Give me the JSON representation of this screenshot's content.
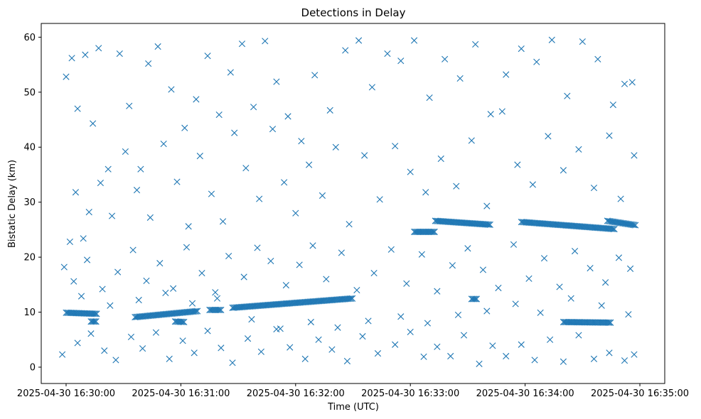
{
  "chart_data": {
    "type": "scatter",
    "title": "Detections in Delay",
    "xlabel": "Time (UTC)",
    "ylabel": "Bistatic Delay (km)",
    "marker": "x",
    "color": "#1f77b4",
    "grid": false,
    "legend": "none",
    "x_start": "2025-04-30 16:29:47",
    "x_end": "2025-04-30 16:35:13",
    "ylim": [
      -2.97,
      62.5
    ],
    "x_ticks": [
      "2025-04-30 16:30:00",
      "2025-04-30 16:31:00",
      "2025-04-30 16:32:00",
      "2025-04-30 16:33:00",
      "2025-04-30 16:34:00",
      "2025-04-30 16:35:00"
    ],
    "y_ticks": [
      0,
      10,
      20,
      30,
      40,
      50,
      60
    ],
    "tracks": [
      {
        "from": "2025-04-30 16:30:00",
        "to": "2025-04-30 16:30:16",
        "delay_from": 9.9,
        "delay_to": 9.7
      },
      {
        "from": "2025-04-30 16:30:13",
        "to": "2025-04-30 16:30:16",
        "delay_from": 8.3,
        "delay_to": 8.3
      },
      {
        "from": "2025-04-30 16:30:36",
        "to": "2025-04-30 16:31:09",
        "delay_from": 9.1,
        "delay_to": 10.2
      },
      {
        "from": "2025-04-30 16:30:57",
        "to": "2025-04-30 16:31:02",
        "delay_from": 8.3,
        "delay_to": 8.2
      },
      {
        "from": "2025-04-30 16:31:15",
        "to": "2025-04-30 16:31:21",
        "delay_from": 10.4,
        "delay_to": 10.4
      },
      {
        "from": "2025-04-30 16:31:27",
        "to": "2025-04-30 16:32:30",
        "delay_from": 10.8,
        "delay_to": 12.5
      },
      {
        "from": "2025-04-30 16:33:02",
        "to": "2025-04-30 16:33:13",
        "delay_from": 24.6,
        "delay_to": 24.6
      },
      {
        "from": "2025-04-30 16:33:13",
        "to": "2025-04-30 16:33:42",
        "delay_from": 26.6,
        "delay_to": 25.9
      },
      {
        "from": "2025-04-30 16:33:58",
        "to": "2025-04-30 16:34:47",
        "delay_from": 26.4,
        "delay_to": 25.1
      },
      {
        "from": "2025-04-30 16:34:43",
        "to": "2025-04-30 16:34:58",
        "delay_from": 26.6,
        "delay_to": 25.8
      },
      {
        "from": "2025-04-30 16:34:20",
        "to": "2025-04-30 16:34:45",
        "delay_from": 8.2,
        "delay_to": 8.1
      },
      {
        "from": "2025-04-30 16:33:32",
        "to": "2025-04-30 16:33:35",
        "delay_from": 12.4,
        "delay_to": 12.4
      }
    ],
    "scattered_detections": [
      [
        "2025-04-30 16:30:00",
        52.8
      ],
      [
        "2025-04-30 16:30:03",
        56.2
      ],
      [
        "2025-04-30 16:30:06",
        47.0
      ],
      [
        "2025-04-30 16:30:10",
        56.8
      ],
      [
        "2025-04-30 16:30:14",
        44.3
      ],
      [
        "2025-04-30 16:30:17",
        58.0
      ],
      [
        "2025-04-30 16:30:22",
        36.0
      ],
      [
        "2025-04-30 16:30:28",
        57.0
      ],
      [
        "2025-04-30 16:30:33",
        47.5
      ],
      [
        "2025-04-30 16:30:39",
        36.0
      ],
      [
        "2025-04-30 16:30:43",
        55.2
      ],
      [
        "2025-04-30 16:30:48",
        58.3
      ],
      [
        "2025-04-30 16:30:55",
        50.5
      ],
      [
        "2025-04-30 16:31:02",
        43.5
      ],
      [
        "2025-04-30 16:31:08",
        48.7
      ],
      [
        "2025-04-30 16:31:14",
        56.6
      ],
      [
        "2025-04-30 16:31:20",
        45.9
      ],
      [
        "2025-04-30 16:31:26",
        53.6
      ],
      [
        "2025-04-30 16:31:32",
        58.8
      ],
      [
        "2025-04-30 16:31:38",
        47.3
      ],
      [
        "2025-04-30 16:31:44",
        59.3
      ],
      [
        "2025-04-30 16:31:50",
        51.9
      ],
      [
        "2025-04-30 16:31:56",
        45.6
      ],
      [
        "2025-04-30 16:32:03",
        41.1
      ],
      [
        "2025-04-30 16:32:10",
        53.1
      ],
      [
        "2025-04-30 16:32:18",
        46.7
      ],
      [
        "2025-04-30 16:32:26",
        57.6
      ],
      [
        "2025-04-30 16:32:33",
        59.4
      ],
      [
        "2025-04-30 16:32:40",
        50.9
      ],
      [
        "2025-04-30 16:32:48",
        57.0
      ],
      [
        "2025-04-30 16:32:55",
        55.7
      ],
      [
        "2025-04-30 16:33:02",
        59.4
      ],
      [
        "2025-04-30 16:33:10",
        49.0
      ],
      [
        "2025-04-30 16:33:18",
        56.0
      ],
      [
        "2025-04-30 16:33:26",
        52.5
      ],
      [
        "2025-04-30 16:33:34",
        58.7
      ],
      [
        "2025-04-30 16:33:42",
        46.0
      ],
      [
        "2025-04-30 16:33:50",
        53.2
      ],
      [
        "2025-04-30 16:33:58",
        57.9
      ],
      [
        "2025-04-30 16:34:06",
        55.5
      ],
      [
        "2025-04-30 16:34:14",
        59.5
      ],
      [
        "2025-04-30 16:34:22",
        49.3
      ],
      [
        "2025-04-30 16:34:30",
        59.2
      ],
      [
        "2025-04-30 16:34:38",
        56.0
      ],
      [
        "2025-04-30 16:34:46",
        47.7
      ],
      [
        "2025-04-30 16:34:52",
        51.5
      ],
      [
        "2025-04-30 16:34:56",
        51.8
      ],
      [
        "2025-04-30 16:30:02",
        22.8
      ],
      [
        "2025-04-30 16:30:05",
        31.8
      ],
      [
        "2025-04-30 16:30:09",
        23.4
      ],
      [
        "2025-04-30 16:30:12",
        28.2
      ],
      [
        "2025-04-30 16:30:18",
        33.5
      ],
      [
        "2025-04-30 16:30:24",
        27.5
      ],
      [
        "2025-04-30 16:30:31",
        39.2
      ],
      [
        "2025-04-30 16:30:37",
        32.2
      ],
      [
        "2025-04-30 16:30:44",
        27.2
      ],
      [
        "2025-04-30 16:30:51",
        40.6
      ],
      [
        "2025-04-30 16:30:58",
        33.7
      ],
      [
        "2025-04-30 16:31:04",
        25.6
      ],
      [
        "2025-04-30 16:31:10",
        38.4
      ],
      [
        "2025-04-30 16:31:16",
        31.5
      ],
      [
        "2025-04-30 16:31:22",
        26.5
      ],
      [
        "2025-04-30 16:31:28",
        42.6
      ],
      [
        "2025-04-30 16:31:34",
        36.2
      ],
      [
        "2025-04-30 16:31:41",
        30.6
      ],
      [
        "2025-04-30 16:31:48",
        43.3
      ],
      [
        "2025-04-30 16:31:54",
        33.6
      ],
      [
        "2025-04-30 16:32:00",
        28.0
      ],
      [
        "2025-04-30 16:32:07",
        36.8
      ],
      [
        "2025-04-30 16:32:14",
        31.2
      ],
      [
        "2025-04-30 16:32:21",
        40.0
      ],
      [
        "2025-04-30 16:32:28",
        26.0
      ],
      [
        "2025-04-30 16:32:36",
        38.5
      ],
      [
        "2025-04-30 16:32:44",
        30.5
      ],
      [
        "2025-04-30 16:32:52",
        40.2
      ],
      [
        "2025-04-30 16:33:00",
        35.5
      ],
      [
        "2025-04-30 16:33:08",
        31.8
      ],
      [
        "2025-04-30 16:33:16",
        37.9
      ],
      [
        "2025-04-30 16:33:24",
        32.9
      ],
      [
        "2025-04-30 16:33:32",
        41.2
      ],
      [
        "2025-04-30 16:33:40",
        29.3
      ],
      [
        "2025-04-30 16:33:48",
        46.5
      ],
      [
        "2025-04-30 16:33:56",
        36.8
      ],
      [
        "2025-04-30 16:34:04",
        33.2
      ],
      [
        "2025-04-30 16:34:12",
        42.0
      ],
      [
        "2025-04-30 16:34:20",
        35.8
      ],
      [
        "2025-04-30 16:34:28",
        39.6
      ],
      [
        "2025-04-30 16:34:36",
        32.6
      ],
      [
        "2025-04-30 16:34:44",
        42.1
      ],
      [
        "2025-04-30 16:34:50",
        30.6
      ],
      [
        "2025-04-30 16:34:57",
        38.5
      ],
      [
        "2025-04-30 16:29:59",
        18.2
      ],
      [
        "2025-04-30 16:30:04",
        15.6
      ],
      [
        "2025-04-30 16:30:11",
        19.5
      ],
      [
        "2025-04-30 16:30:19",
        14.2
      ],
      [
        "2025-04-30 16:30:27",
        17.3
      ],
      [
        "2025-04-30 16:30:35",
        21.3
      ],
      [
        "2025-04-30 16:30:42",
        15.7
      ],
      [
        "2025-04-30 16:30:49",
        18.9
      ],
      [
        "2025-04-30 16:30:56",
        14.3
      ],
      [
        "2025-04-30 16:31:03",
        21.8
      ],
      [
        "2025-04-30 16:31:11",
        17.1
      ],
      [
        "2025-04-30 16:31:18",
        13.6
      ],
      [
        "2025-04-30 16:31:25",
        20.2
      ],
      [
        "2025-04-30 16:31:33",
        16.4
      ],
      [
        "2025-04-30 16:31:40",
        21.7
      ],
      [
        "2025-04-30 16:31:47",
        19.3
      ],
      [
        "2025-04-30 16:31:55",
        14.9
      ],
      [
        "2025-04-30 16:32:02",
        18.6
      ],
      [
        "2025-04-30 16:32:09",
        22.1
      ],
      [
        "2025-04-30 16:32:16",
        16.0
      ],
      [
        "2025-04-30 16:32:24",
        20.8
      ],
      [
        "2025-04-30 16:32:32",
        14.0
      ],
      [
        "2025-04-30 16:32:41",
        17.1
      ],
      [
        "2025-04-30 16:32:50",
        21.4
      ],
      [
        "2025-04-30 16:32:58",
        15.2
      ],
      [
        "2025-04-30 16:33:06",
        20.5
      ],
      [
        "2025-04-30 16:33:14",
        13.8
      ],
      [
        "2025-04-30 16:33:22",
        18.5
      ],
      [
        "2025-04-30 16:33:30",
        21.6
      ],
      [
        "2025-04-30 16:33:38",
        17.7
      ],
      [
        "2025-04-30 16:33:46",
        14.4
      ],
      [
        "2025-04-30 16:33:54",
        22.3
      ],
      [
        "2025-04-30 16:34:02",
        16.1
      ],
      [
        "2025-04-30 16:34:10",
        19.8
      ],
      [
        "2025-04-30 16:34:18",
        14.6
      ],
      [
        "2025-04-30 16:34:26",
        21.1
      ],
      [
        "2025-04-30 16:34:34",
        18.0
      ],
      [
        "2025-04-30 16:34:42",
        15.4
      ],
      [
        "2025-04-30 16:34:49",
        19.9
      ],
      [
        "2025-04-30 16:34:55",
        17.9
      ],
      [
        "2025-04-30 16:29:58",
        2.3
      ],
      [
        "2025-04-30 16:30:06",
        4.4
      ],
      [
        "2025-04-30 16:30:13",
        6.1
      ],
      [
        "2025-04-30 16:30:20",
        3.0
      ],
      [
        "2025-04-30 16:30:26",
        1.3
      ],
      [
        "2025-04-30 16:30:34",
        5.5
      ],
      [
        "2025-04-30 16:30:40",
        3.4
      ],
      [
        "2025-04-30 16:30:47",
        6.3
      ],
      [
        "2025-04-30 16:30:54",
        1.5
      ],
      [
        "2025-04-30 16:31:01",
        4.8
      ],
      [
        "2025-04-30 16:31:07",
        2.6
      ],
      [
        "2025-04-30 16:31:14",
        6.6
      ],
      [
        "2025-04-30 16:31:21",
        3.5
      ],
      [
        "2025-04-30 16:31:27",
        0.8
      ],
      [
        "2025-04-30 16:31:35",
        5.2
      ],
      [
        "2025-04-30 16:31:42",
        2.8
      ],
      [
        "2025-04-30 16:31:50",
        6.9
      ],
      [
        "2025-04-30 16:31:57",
        3.6
      ],
      [
        "2025-04-30 16:32:05",
        1.5
      ],
      [
        "2025-04-30 16:32:12",
        5.0
      ],
      [
        "2025-04-30 16:32:19",
        3.2
      ],
      [
        "2025-04-30 16:32:27",
        1.1
      ],
      [
        "2025-04-30 16:32:35",
        5.6
      ],
      [
        "2025-04-30 16:32:43",
        2.5
      ],
      [
        "2025-04-30 16:32:52",
        4.1
      ],
      [
        "2025-04-30 16:33:00",
        6.4
      ],
      [
        "2025-04-30 16:33:07",
        1.9
      ],
      [
        "2025-04-30 16:33:14",
        3.7
      ],
      [
        "2025-04-30 16:33:21",
        2.0
      ],
      [
        "2025-04-30 16:33:28",
        5.8
      ],
      [
        "2025-04-30 16:33:36",
        0.6
      ],
      [
        "2025-04-30 16:33:43",
        3.9
      ],
      [
        "2025-04-30 16:33:50",
        2.0
      ],
      [
        "2025-04-30 16:33:58",
        4.1
      ],
      [
        "2025-04-30 16:34:05",
        1.3
      ],
      [
        "2025-04-30 16:34:13",
        5.0
      ],
      [
        "2025-04-30 16:34:20",
        1.0
      ],
      [
        "2025-04-30 16:34:28",
        5.8
      ],
      [
        "2025-04-30 16:34:36",
        1.5
      ],
      [
        "2025-04-30 16:34:44",
        2.6
      ],
      [
        "2025-04-30 16:34:52",
        1.2
      ],
      [
        "2025-04-30 16:34:57",
        2.3
      ],
      [
        "2025-04-30 16:30:08",
        12.9
      ],
      [
        "2025-04-30 16:30:23",
        11.2
      ],
      [
        "2025-04-30 16:30:38",
        12.2
      ],
      [
        "2025-04-30 16:30:52",
        13.5
      ],
      [
        "2025-04-30 16:31:06",
        11.6
      ],
      [
        "2025-04-30 16:31:19",
        12.5
      ],
      [
        "2025-04-30 16:31:37",
        8.7
      ],
      [
        "2025-04-30 16:31:52",
        7.0
      ],
      [
        "2025-04-30 16:32:08",
        8.2
      ],
      [
        "2025-04-30 16:32:22",
        7.2
      ],
      [
        "2025-04-30 16:32:38",
        8.4
      ],
      [
        "2025-04-30 16:32:55",
        9.2
      ],
      [
        "2025-04-30 16:33:09",
        8.0
      ],
      [
        "2025-04-30 16:33:25",
        9.5
      ],
      [
        "2025-04-30 16:33:40",
        10.2
      ],
      [
        "2025-04-30 16:33:55",
        11.5
      ],
      [
        "2025-04-30 16:34:08",
        9.9
      ],
      [
        "2025-04-30 16:34:24",
        12.5
      ],
      [
        "2025-04-30 16:34:40",
        11.2
      ],
      [
        "2025-04-30 16:34:54",
        9.6
      ]
    ]
  }
}
